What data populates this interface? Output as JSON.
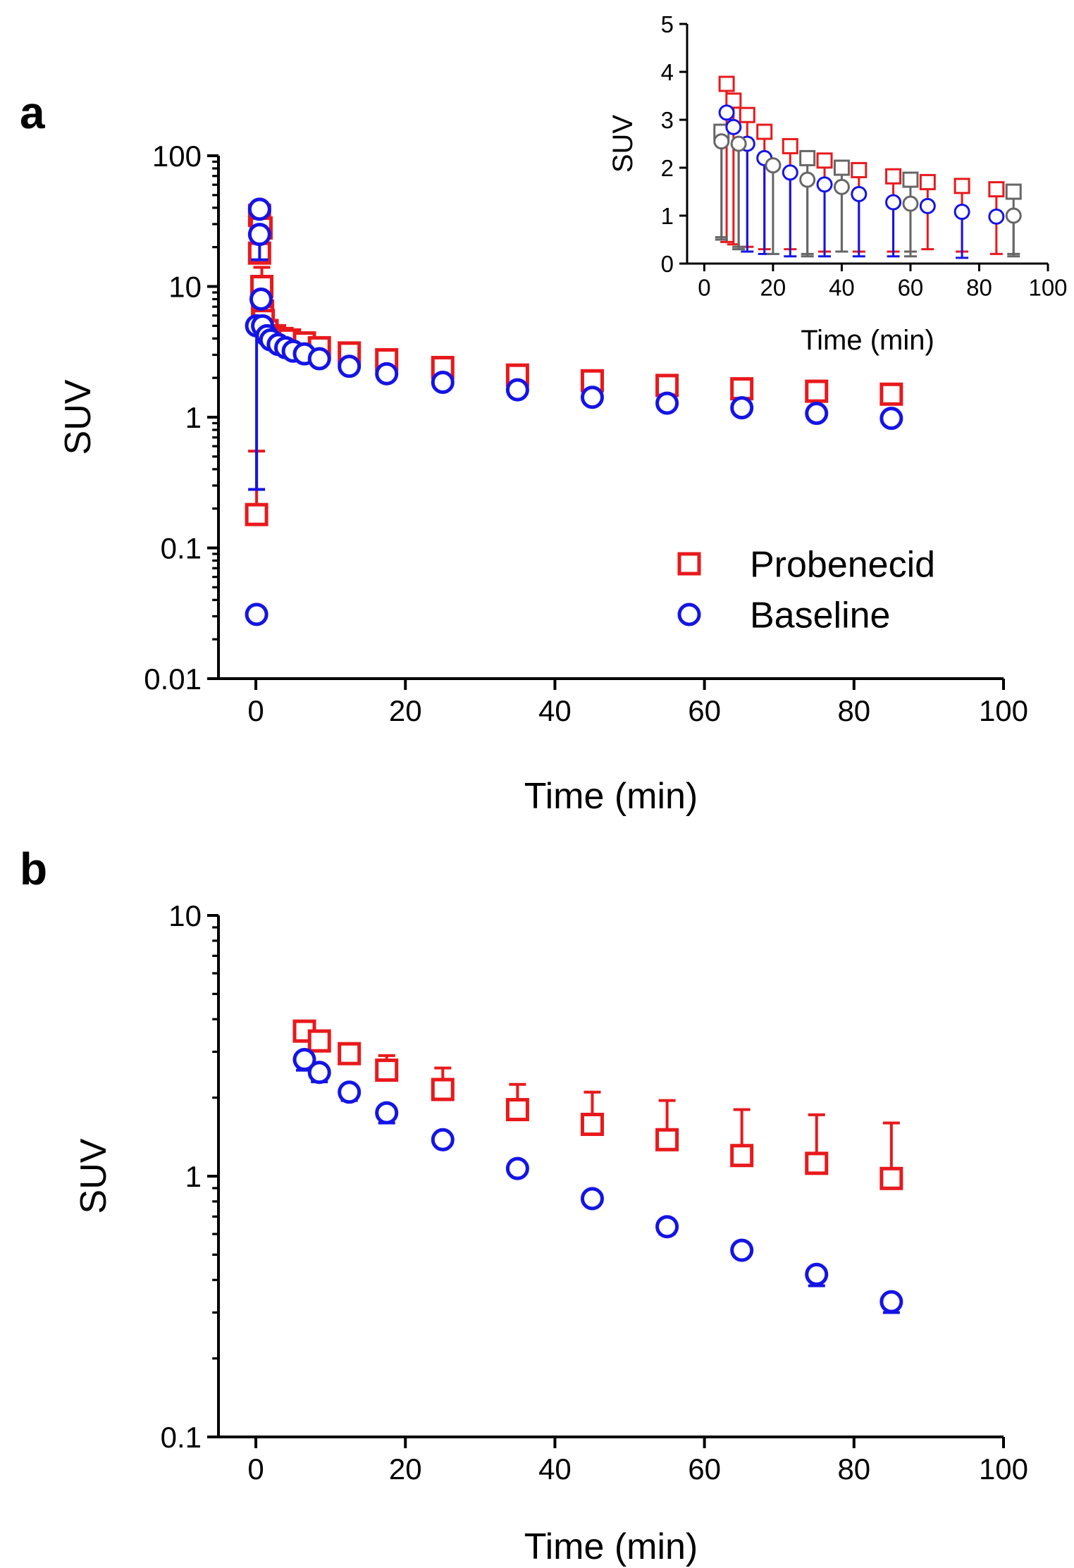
{
  "colors": {
    "probenecid": "#e8191c",
    "baseline": "#1414e6",
    "gray": "#666666",
    "axis": "#000000"
  },
  "chart_data": [
    {
      "panel": "a",
      "type": "scatter",
      "yscale": "log",
      "xlabel": "Time (min)",
      "ylabel": "SUV",
      "xlim": [
        -5,
        100
      ],
      "ylim": [
        0.01,
        100
      ],
      "xticks": [
        "0",
        "20",
        "40",
        "60",
        "80",
        "100"
      ],
      "yticks": [
        "0.01",
        "0.1",
        "1",
        "10",
        "100"
      ],
      "legend": {
        "position": "lower-right",
        "items": [
          "Probenecid",
          "Baseline"
        ]
      },
      "series": [
        {
          "name": "Probenecid",
          "marker": "square",
          "color": "#e8191c",
          "points": [
            {
              "x": 0.1,
              "y": 0.18,
              "err": 0.55
            },
            {
              "x": 0.5,
              "y": 18,
              "err": 28
            },
            {
              "x": 0.5,
              "y": 35,
              "err": 42
            },
            {
              "x": 0.7,
              "y": 28,
              "err": 38
            },
            {
              "x": 0.8,
              "y": 10,
              "err": 14
            },
            {
              "x": 0.9,
              "y": 6.5,
              "err": 9
            },
            {
              "x": 1.0,
              "y": 5.5,
              "err": 7
            },
            {
              "x": 1.5,
              "y": 4.6
            },
            {
              "x": 2.5,
              "y": 4.2
            },
            {
              "x": 3.5,
              "y": 4.0
            },
            {
              "x": 4.5,
              "y": 3.9
            },
            {
              "x": 6.5,
              "y": 3.7
            },
            {
              "x": 8.5,
              "y": 3.4
            },
            {
              "x": 12.5,
              "y": 3.1
            },
            {
              "x": 17.5,
              "y": 2.75
            },
            {
              "x": 25,
              "y": 2.4
            },
            {
              "x": 35,
              "y": 2.1
            },
            {
              "x": 45,
              "y": 1.9
            },
            {
              "x": 55,
              "y": 1.75
            },
            {
              "x": 65,
              "y": 1.65
            },
            {
              "x": 75,
              "y": 1.58
            },
            {
              "x": 85,
              "y": 1.5
            }
          ]
        },
        {
          "name": "Baseline",
          "marker": "circle",
          "color": "#1414e6",
          "points": [
            {
              "x": 0.1,
              "y": 0.031
            },
            {
              "x": 0.1,
              "y": 5.0,
              "errLow": 0.28
            },
            {
              "x": 0.5,
              "y": 25,
              "err": 16
            },
            {
              "x": 0.5,
              "y": 39
            },
            {
              "x": 0.7,
              "y": 8.0
            },
            {
              "x": 0.9,
              "y": 5.0
            },
            {
              "x": 1.5,
              "y": 4.2
            },
            {
              "x": 2.0,
              "y": 3.9
            },
            {
              "x": 3.0,
              "y": 3.6
            },
            {
              "x": 4.0,
              "y": 3.4
            },
            {
              "x": 5.0,
              "y": 3.2
            },
            {
              "x": 6.5,
              "y": 3.05
            },
            {
              "x": 8.5,
              "y": 2.8
            },
            {
              "x": 12.5,
              "y": 2.45
            },
            {
              "x": 17.5,
              "y": 2.15
            },
            {
              "x": 25,
              "y": 1.85
            },
            {
              "x": 35,
              "y": 1.62
            },
            {
              "x": 45,
              "y": 1.42
            },
            {
              "x": 55,
              "y": 1.28
            },
            {
              "x": 65,
              "y": 1.18
            },
            {
              "x": 75,
              "y": 1.07
            },
            {
              "x": 85,
              "y": 0.98
            }
          ]
        }
      ]
    },
    {
      "panel": "a-inset",
      "type": "scatter",
      "yscale": "linear",
      "xlabel": "Time (min)",
      "ylabel": "SUV",
      "xlim": [
        -5,
        100
      ],
      "ylim": [
        0,
        5
      ],
      "xticks": [
        "0",
        "20",
        "40",
        "60",
        "80",
        "100"
      ],
      "yticks": [
        "0",
        "1",
        "2",
        "3",
        "4",
        "5"
      ],
      "series": [
        {
          "name": "Probenecid (red squares)",
          "marker": "square",
          "color": "#e8191c",
          "points": [
            {
              "x": 6.5,
              "y": 3.75,
              "err": 0.45
            },
            {
              "x": 8.5,
              "y": 3.4,
              "err": 0.4
            },
            {
              "x": 12.5,
              "y": 3.1,
              "err": 0.35
            },
            {
              "x": 17.5,
              "y": 2.75,
              "err": 0.3
            },
            {
              "x": 25,
              "y": 2.45,
              "err": 0.3
            },
            {
              "x": 35,
              "y": 2.15,
              "err": 0.25
            },
            {
              "x": 45,
              "y": 1.95,
              "err": 0.25
            },
            {
              "x": 55,
              "y": 1.82,
              "err": 0.25
            },
            {
              "x": 65,
              "y": 1.7,
              "err": 0.3
            },
            {
              "x": 75,
              "y": 1.62,
              "err": 0.25
            },
            {
              "x": 85,
              "y": 1.55,
              "err": 0.2
            }
          ]
        },
        {
          "name": "Gray squares",
          "marker": "square",
          "color": "#666666",
          "points": [
            {
              "x": 5,
              "y": 2.75
            },
            {
              "x": 30,
              "y": 2.2,
              "err": 0.2
            },
            {
              "x": 40,
              "y": 2.0,
              "err": 0.25
            },
            {
              "x": 60,
              "y": 1.75,
              "err": 0.25
            },
            {
              "x": 90,
              "y": 1.5,
              "err": 0.2
            }
          ]
        },
        {
          "name": "Baseline (blue circles)",
          "marker": "circle",
          "color": "#1414e6",
          "points": [
            {
              "x": 6.5,
              "y": 3.15
            },
            {
              "x": 8.5,
              "y": 2.85
            },
            {
              "x": 12.5,
              "y": 2.5,
              "errLow": 0.25
            },
            {
              "x": 17.5,
              "y": 2.2,
              "errLow": 0.2
            },
            {
              "x": 25,
              "y": 1.9,
              "errLow": 0.15
            },
            {
              "x": 35,
              "y": 1.65,
              "errLow": 0.15
            },
            {
              "x": 45,
              "y": 1.45,
              "errLow": 0.15
            },
            {
              "x": 55,
              "y": 1.28,
              "errLow": 0.15
            },
            {
              "x": 65,
              "y": 1.2
            },
            {
              "x": 75,
              "y": 1.08,
              "errLow": 0.12
            },
            {
              "x": 85,
              "y": 0.98
            }
          ]
        },
        {
          "name": "Gray circles",
          "marker": "circle",
          "color": "#666666",
          "points": [
            {
              "x": 5,
              "y": 2.55,
              "err": 0.5,
              "errLow": 0.55
            },
            {
              "x": 10,
              "y": 2.5,
              "err": 0.3,
              "errLow": 0.35
            },
            {
              "x": 20,
              "y": 2.05,
              "errLow": 0.2
            },
            {
              "x": 30,
              "y": 1.75,
              "errLow": 0.15
            },
            {
              "x": 40,
              "y": 1.6,
              "errLow": 0.25
            },
            {
              "x": 60,
              "y": 1.25,
              "errLow": 0.15
            },
            {
              "x": 90,
              "y": 1.0,
              "errLow": 0.15
            }
          ]
        }
      ]
    },
    {
      "panel": "b",
      "type": "scatter",
      "yscale": "log",
      "xlabel": "Time (min)",
      "ylabel": "SUV",
      "xlim": [
        -5,
        100
      ],
      "ylim": [
        0.1,
        10
      ],
      "xticks": [
        "0",
        "20",
        "40",
        "60",
        "80",
        "100"
      ],
      "yticks": [
        "0.1",
        "1",
        "10"
      ],
      "series": [
        {
          "name": "Probenecid",
          "marker": "square",
          "color": "#e8191c",
          "points": [
            {
              "x": 6.5,
              "y": 3.6,
              "err": 3.9
            },
            {
              "x": 8.5,
              "y": 3.3,
              "err": 3.55
            },
            {
              "x": 12.5,
              "y": 2.95,
              "err": 3.2
            },
            {
              "x": 17.5,
              "y": 2.55,
              "err": 2.9
            },
            {
              "x": 25,
              "y": 2.15,
              "err": 2.6
            },
            {
              "x": 35,
              "y": 1.8,
              "err": 2.25
            },
            {
              "x": 45,
              "y": 1.58,
              "err": 2.1
            },
            {
              "x": 55,
              "y": 1.38,
              "err": 1.95
            },
            {
              "x": 65,
              "y": 1.2,
              "err": 1.8
            },
            {
              "x": 75,
              "y": 1.12,
              "err": 1.72
            },
            {
              "x": 85,
              "y": 0.98,
              "err": 1.6
            }
          ]
        },
        {
          "name": "Baseline",
          "marker": "circle",
          "color": "#1414e6",
          "points": [
            {
              "x": 6.5,
              "y": 2.8,
              "errLow": 2.55
            },
            {
              "x": 8.5,
              "y": 2.5,
              "errLow": 2.3
            },
            {
              "x": 12.5,
              "y": 2.1,
              "errLow": 1.95
            },
            {
              "x": 17.5,
              "y": 1.75,
              "errLow": 1.6
            },
            {
              "x": 25,
              "y": 1.38
            },
            {
              "x": 35,
              "y": 1.07
            },
            {
              "x": 45,
              "y": 0.82,
              "errLow": 0.78
            },
            {
              "x": 55,
              "y": 0.64,
              "errLow": 0.6
            },
            {
              "x": 65,
              "y": 0.52,
              "errLow": 0.49
            },
            {
              "x": 75,
              "y": 0.42,
              "errLow": 0.38
            },
            {
              "x": 85,
              "y": 0.33,
              "errLow": 0.3
            }
          ]
        }
      ]
    }
  ],
  "panel_labels": {
    "a": "a",
    "b": "b"
  }
}
